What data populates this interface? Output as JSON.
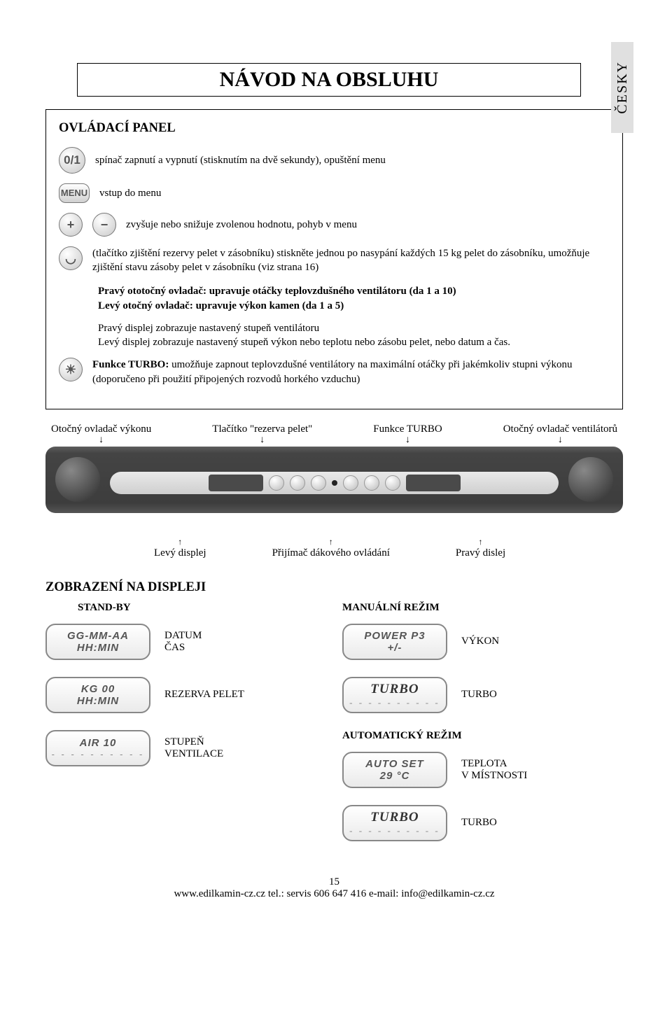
{
  "lang": "ČESKY",
  "title": "NÁVOD NA OBSLUHU",
  "panel": {
    "heading": "OVLÁDACÍ PANEL",
    "r1": {
      "icon": "0/1",
      "text": "spínač zapnutí a vypnutí (stisknutím na dvě sekundy), opuštění menu"
    },
    "r2": {
      "icon": "MENU",
      "text": "vstup do menu"
    },
    "r3": {
      "icons": [
        "+",
        "−"
      ],
      "text": "zvyšuje nebo snižuje zvolenou hodnotu, pohyb v menu"
    },
    "r4": {
      "text": "(tlačítko zjištění rezervy pelet v zásobníku) stiskněte jednou po nasypání každých 15 kg pelet do zásobníku, umožňuje zjištění stavu zásoby pelet v zásobníku (viz strana 16)"
    },
    "p1": "Pravý ototočný ovladač: upravuje otáčky teplovzdušného ventilátoru (da 1 a 10)",
    "p2": "Levý otočný ovladač: upravuje výkon kamen (da 1 a 5)",
    "p3": "Pravý displej zobrazuje nastavený stupeň ventilátoru",
    "p4": "Levý displej zobrazuje nastavený stupeň výkon nebo teplotu nebo zásobu pelet, nebo datum a čas.",
    "p5": "Funkce TURBO: umožňuje zapnout teplovzdušné ventilátory na maximální otáčky při jakémkoliv stupni výkonu (doporučeno při použití připojených rozvodů horkého vzduchu)"
  },
  "co": {
    "a": "Otočný ovladač výkonu",
    "b": "Tlačítko \"rezerva pelet\"",
    "c": "Funkce TURBO",
    "d": "Otočný ovladač ventilátorů"
  },
  "bot": {
    "a": "Levý displej",
    "b": "Přijímač dákového ovládání",
    "c": "Pravý dislej"
  },
  "h2": "ZOBRAZENÍ NA DISPLEJI",
  "left": {
    "title": "STAND-BY",
    "d1": {
      "l1": "GG-MM-AA",
      "l2": "HH:MIN",
      "labels": [
        "DATUM",
        "ČAS"
      ]
    },
    "d2": {
      "l1": "KG 00",
      "l2": "HH:MIN",
      "label": "REZERVA PELET"
    },
    "d3": {
      "l1": "AIR 10",
      "l2": "- - - - - - - - - -",
      "labels": [
        "STUPEŇ",
        "VENTILACE"
      ]
    }
  },
  "right": {
    "title": "MANUÁLNÍ REŽIM",
    "d1": {
      "l1": "POWER P3",
      "l2": "+/-",
      "label": "VÝKON"
    },
    "d2": {
      "l1": "TURBO",
      "l2": "- - - - - - - - - -",
      "label": "TURBO"
    },
    "mid": "AUTOMATICKÝ REŽIM",
    "d3": {
      "l1": "AUTO SET",
      "l2": "29 °C",
      "labels": [
        "TEPLOTA",
        "V MÍSTNOSTI"
      ]
    },
    "d4": {
      "l1": "TURBO",
      "l2": "- - - - - - - - - -",
      "label": "TURBO"
    }
  },
  "page": "15",
  "footer": "www.edilkamin-cz.cz tel.: servis 606 647 416 e-mail: info@edilkamin-cz.cz"
}
